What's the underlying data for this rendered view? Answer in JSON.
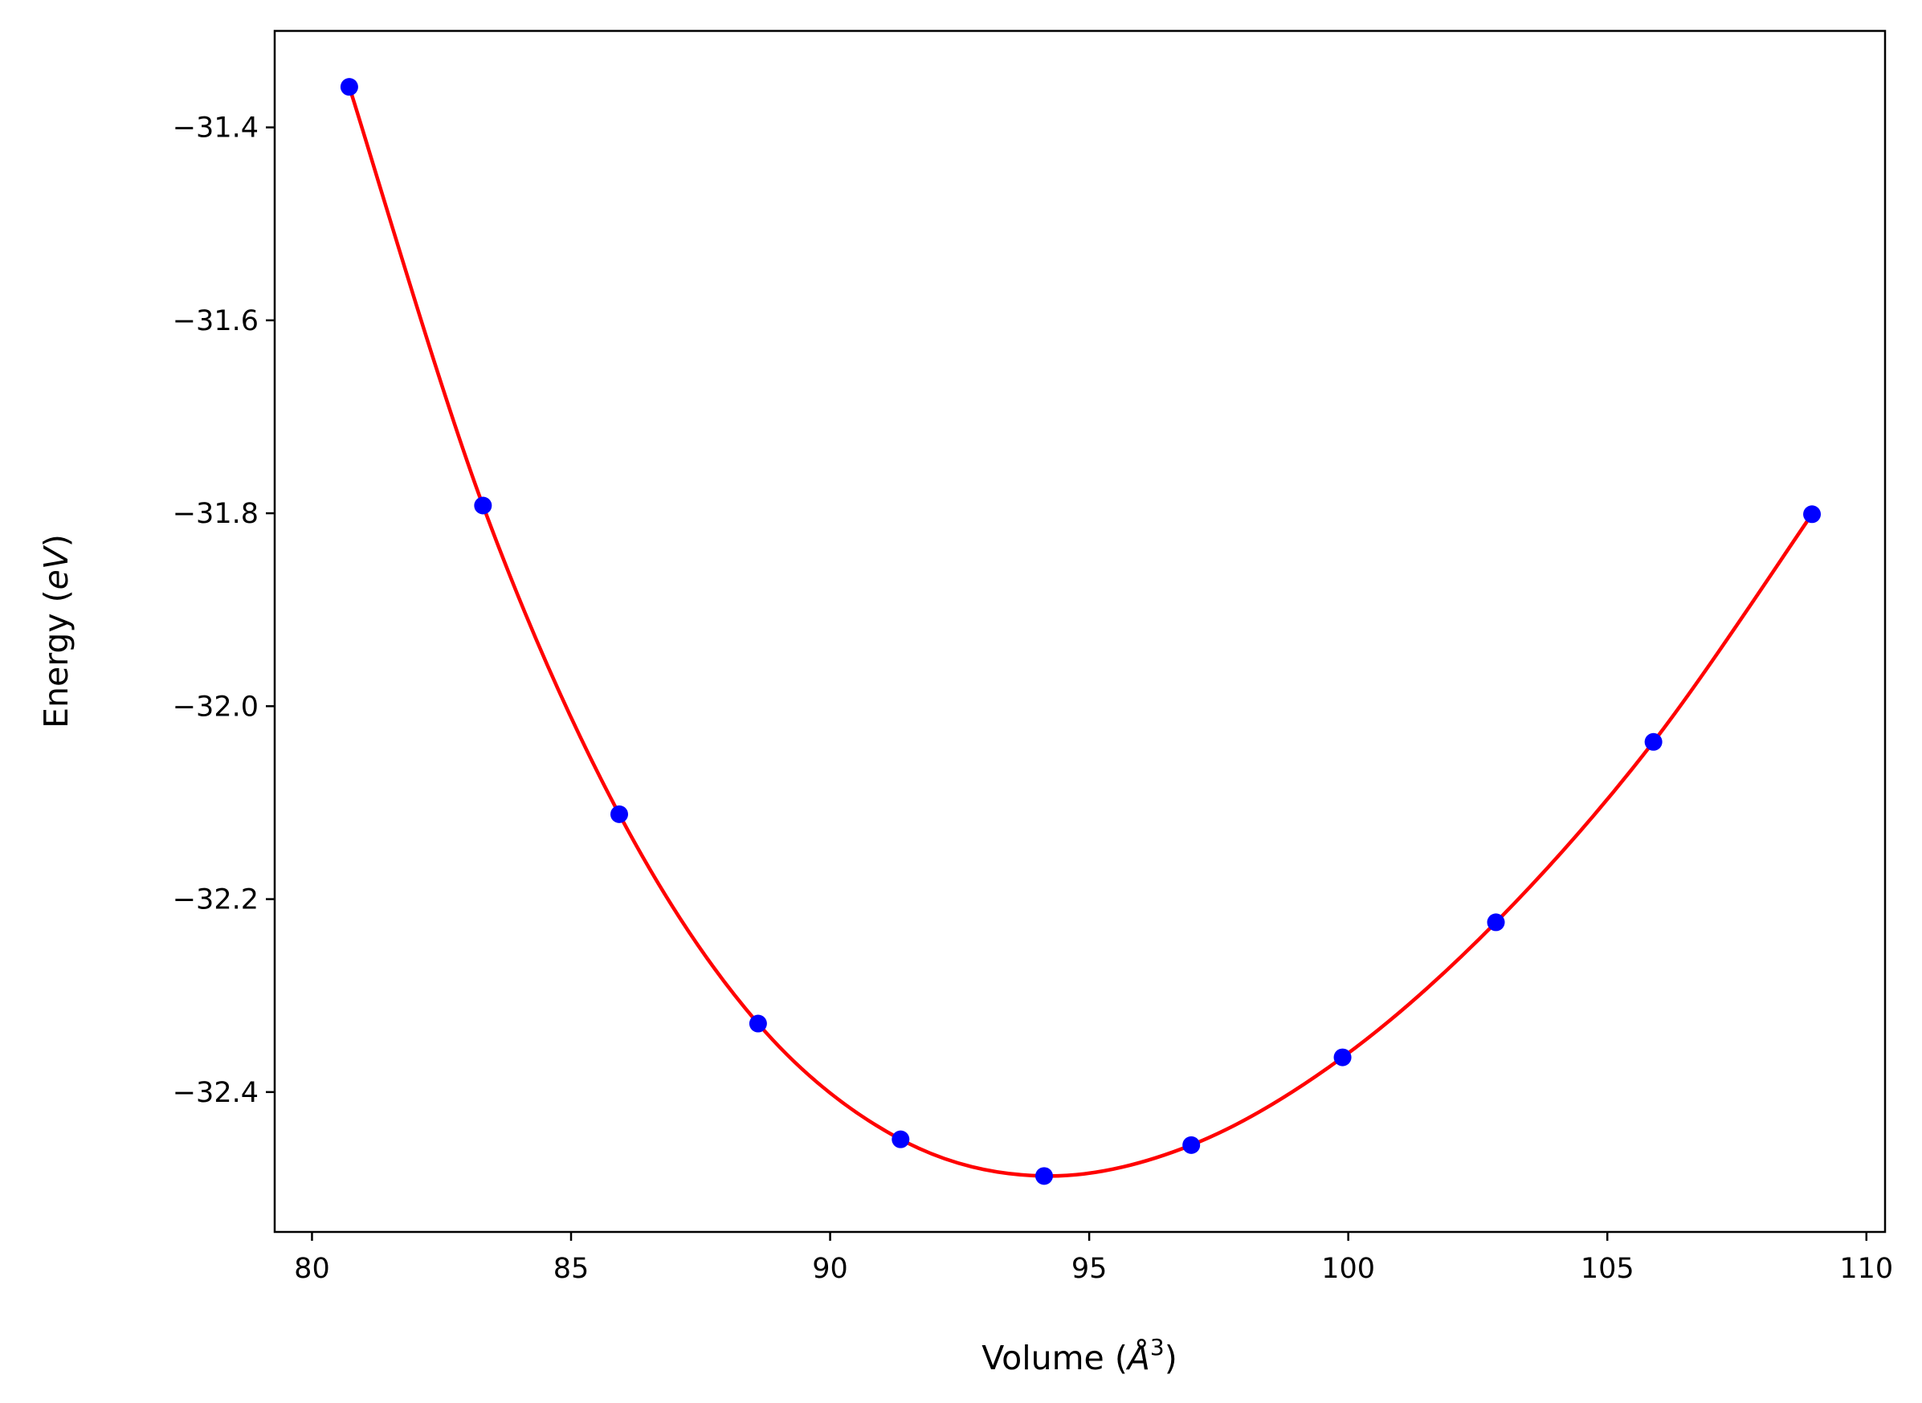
{
  "chart_data": {
    "type": "line",
    "title": "",
    "xlabel": "Volume",
    "xlabel_unit_base": "Å",
    "xlabel_unit_exp": "3",
    "ylabel": "Energy",
    "ylabel_unit": "eV",
    "xlim": [
      79.28,
      110.36
    ],
    "ylim": [
      -32.545,
      -31.3
    ],
    "xticks": [
      80,
      85,
      90,
      95,
      100,
      105,
      110
    ],
    "xtick_labels": [
      "80",
      "85",
      "90",
      "95",
      "100",
      "105",
      "110"
    ],
    "yticks": [
      -31.4,
      -31.6,
      -31.8,
      -32.0,
      -32.2,
      -32.4
    ],
    "ytick_labels": [
      "−31.4",
      "−31.6",
      "−31.8",
      "−32.0",
      "−32.2",
      "−32.4"
    ],
    "grid": false,
    "series": [
      {
        "name": "data",
        "style": "markers",
        "color": "#0000ff",
        "x": [
          80.72,
          83.3,
          85.93,
          88.61,
          91.36,
          94.13,
          96.97,
          99.89,
          102.85,
          105.89,
          108.95
        ],
        "y": [
          -31.358,
          -31.792,
          -32.112,
          -32.329,
          -32.449,
          -32.487,
          -32.455,
          -32.364,
          -32.224,
          -32.037,
          -31.801
        ]
      },
      {
        "name": "fit",
        "style": "line",
        "color": "#ff0000"
      }
    ]
  }
}
